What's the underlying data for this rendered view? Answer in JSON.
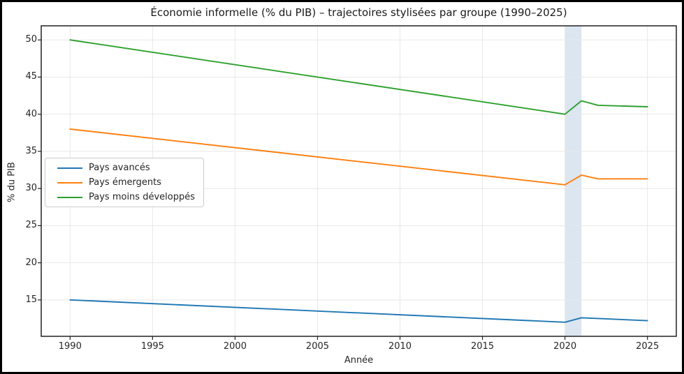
{
  "chart_data": {
    "type": "line",
    "title": "Économie informelle (% du PIB) – trajectoires stylisées par groupe (1990–2025)",
    "xlabel": "Année",
    "ylabel": "% du PIB",
    "xlim": [
      1988.25,
      2026.75
    ],
    "ylim": [
      10.1,
      51.9
    ],
    "x_ticks": [
      1990,
      1995,
      2000,
      2005,
      2010,
      2015,
      2020,
      2025
    ],
    "y_ticks": [
      15,
      20,
      25,
      30,
      35,
      40,
      45,
      50
    ],
    "grid": true,
    "grid_color": "#e8e8e8",
    "legend_position": "center-left",
    "series": [
      {
        "name": "Pays avancés",
        "color": "#1f77b4",
        "x": [
          1990,
          2020,
          2021,
          2022,
          2025
        ],
        "values": [
          15.0,
          12.0,
          12.6,
          12.5,
          12.2
        ]
      },
      {
        "name": "Pays émergents",
        "color": "#ff7f0e",
        "x": [
          1990,
          2020,
          2021,
          2022,
          2025
        ],
        "values": [
          38.0,
          30.5,
          31.8,
          31.3,
          31.3
        ]
      },
      {
        "name": "Pays moins développés",
        "color": "#2ca02c",
        "x": [
          1990,
          2020,
          2021,
          2022,
          2025
        ],
        "values": [
          50.0,
          40.0,
          41.8,
          41.2,
          41.0
        ]
      }
    ],
    "shaded_span": {
      "x_start": 2020,
      "x_end": 2021,
      "color": "#dbe6f1"
    }
  }
}
